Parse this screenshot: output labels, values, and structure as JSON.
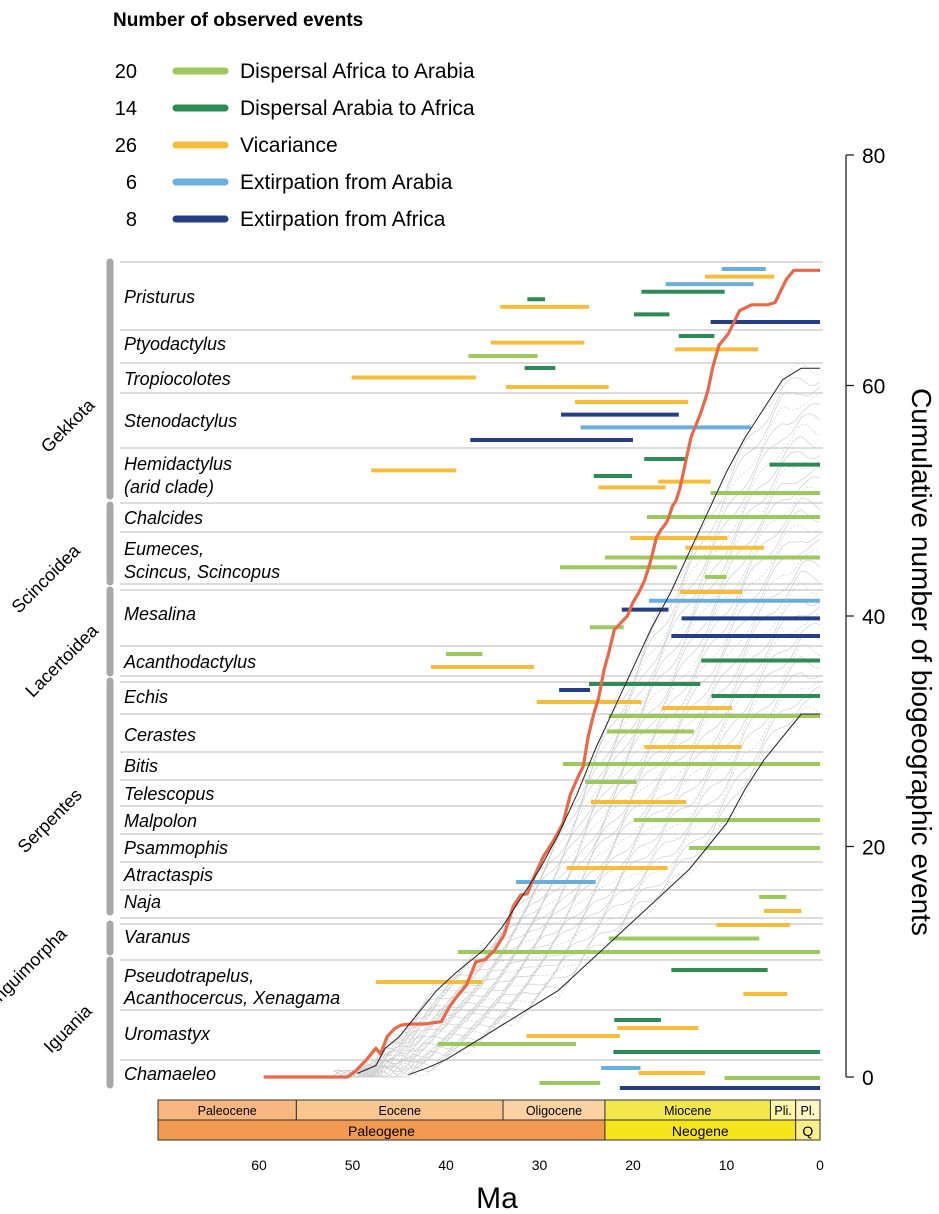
{
  "chart_data": {
    "type": "line",
    "legend": {
      "title": "Number of observed events",
      "placement": "top-left",
      "entries": [
        {
          "count": "20",
          "label": "Dispersal Africa to Arabia",
          "color": "#9cc85e"
        },
        {
          "count": "14",
          "label": "Dispersal Arabia to Africa",
          "color": "#2e8b57"
        },
        {
          "count": "26",
          "label": "Vicariance",
          "color": "#f6bd3c"
        },
        {
          "count": "6",
          "label": "Extirpation from Arabia",
          "color": "#6aaede"
        },
        {
          "count": "8",
          "label": "Extirpation from Africa",
          "color": "#243f86"
        }
      ]
    },
    "xlabel": "Ma",
    "xlim": [
      71,
      0
    ],
    "x_ticks": [
      "60",
      "50",
      "40",
      "30",
      "20",
      "10",
      "0"
    ],
    "x_tick_values": [
      60,
      50,
      40,
      30,
      20,
      10,
      0
    ],
    "ylabel": "Cumulative number of biogeographic events",
    "ylim": [
      0,
      80
    ],
    "y_ticks": [
      "0",
      "20",
      "40",
      "60",
      "80"
    ],
    "y_tick_values": [
      0,
      20,
      40,
      60,
      80
    ],
    "timescale": {
      "epochs": [
        {
          "label": "Paleocene",
          "from": 66,
          "to": 56,
          "color": "#f8b680"
        },
        {
          "label": "Eocene",
          "from": 56,
          "to": 33.9,
          "color": "#f9c590"
        },
        {
          "label": "Oligocene",
          "from": 33.9,
          "to": 23,
          "color": "#fcd2a4"
        },
        {
          "label": "Miocene",
          "from": 23,
          "to": 5.3,
          "color": "#f2e84e"
        },
        {
          "label": "Pli.",
          "from": 5.3,
          "to": 2.6,
          "color": "#fdf6a8"
        },
        {
          "label": "Pl.",
          "from": 2.6,
          "to": 0,
          "color": "#fdf5c4"
        }
      ],
      "periods": [
        {
          "label": "Paleogene",
          "from": 66,
          "to": 23,
          "color": "#f29a50"
        },
        {
          "label": "Neogene",
          "from": 23,
          "to": 2.6,
          "color": "#f6e41c"
        },
        {
          "label": "Q",
          "from": 2.6,
          "to": 0,
          "color": "#fbef8a"
        }
      ]
    },
    "groups": [
      {
        "label": "Gekkota",
        "from_row": 0,
        "to_row": 4
      },
      {
        "label": "Scincoidea",
        "from_row": 5,
        "to_row": 6
      },
      {
        "label": "Lacertoidea",
        "from_row": 7,
        "to_row": 8
      },
      {
        "label": "Serpentes",
        "from_row": 9,
        "to_row": 17
      },
      {
        "label": "Anguimorpha",
        "from_row": 18,
        "to_row": 18
      },
      {
        "label": "Iguania",
        "from_row": 19,
        "to_row": 21
      }
    ],
    "taxa": [
      {
        "lines": [
          "Pristurus"
        ],
        "events": [
          {
            "type": 3,
            "start": 10.5,
            "end": 5.8
          },
          {
            "type": 2,
            "start": 12.3,
            "end": 4.9
          },
          {
            "type": 3,
            "start": 16.5,
            "end": 7.1
          },
          {
            "type": 1,
            "start": 19.1,
            "end": 10.2
          },
          {
            "type": 1,
            "start": 31.3,
            "end": 29.4
          },
          {
            "type": 2,
            "start": 34.2,
            "end": 24.7
          },
          {
            "type": 1,
            "start": 19.9,
            "end": 16.1
          },
          {
            "type": 4,
            "start": 11.7,
            "end": 0
          }
        ]
      },
      {
        "lines": [
          "Ptyodactylus"
        ],
        "events": [
          {
            "type": 1,
            "start": 15.1,
            "end": 11.3
          },
          {
            "type": 2,
            "start": 35.2,
            "end": 25.2
          },
          {
            "type": 2,
            "start": 15.5,
            "end": 6.6
          },
          {
            "type": 0,
            "start": 37.6,
            "end": 30.2
          }
        ]
      },
      {
        "lines": [
          "Tropiocolotes"
        ],
        "events": [
          {
            "type": 1,
            "start": 31.6,
            "end": 28.3
          },
          {
            "type": 2,
            "start": 50.1,
            "end": 36.8
          },
          {
            "type": 2,
            "start": 33.6,
            "end": 22.6
          }
        ]
      },
      {
        "lines": [
          "Stenodactylus"
        ],
        "events": [
          {
            "type": 2,
            "start": 26.2,
            "end": 14.1
          },
          {
            "type": 4,
            "start": 27.7,
            "end": 15.1
          },
          {
            "type": 3,
            "start": 25.6,
            "end": 7.4
          },
          {
            "type": 4,
            "start": 37.4,
            "end": 20.0
          }
        ]
      },
      {
        "lines": [
          "Hemidactylus",
          "(arid clade)"
        ],
        "events": [
          {
            "type": 1,
            "start": 18.8,
            "end": 14.3
          },
          {
            "type": 1,
            "start": 5.4,
            "end": 0
          },
          {
            "type": 2,
            "start": 48.0,
            "end": 38.9
          },
          {
            "type": 1,
            "start": 24.2,
            "end": 20.1
          },
          {
            "type": 2,
            "start": 17.3,
            "end": 11.7
          },
          {
            "type": 2,
            "start": 23.7,
            "end": 16.5
          },
          {
            "type": 0,
            "start": 11.7,
            "end": 0
          }
        ]
      },
      {
        "lines": [
          "Chalcides"
        ],
        "events": [
          {
            "type": 0,
            "start": 18.5,
            "end": 0
          }
        ]
      },
      {
        "lines": [
          "Eumeces,",
          "Scincus, Scincopus"
        ],
        "events": [
          {
            "type": 2,
            "start": 20.3,
            "end": 9.9
          },
          {
            "type": 2,
            "start": 14.4,
            "end": 6.0
          },
          {
            "type": 0,
            "start": 23.0,
            "end": 0
          },
          {
            "type": 0,
            "start": 27.8,
            "end": 15.3
          },
          {
            "type": 0,
            "start": 12.3,
            "end": 10.0
          }
        ]
      },
      {
        "lines": [
          "Mesalina"
        ],
        "events": [
          {
            "type": 2,
            "start": 15.0,
            "end": 8.3
          },
          {
            "type": 3,
            "start": 18.3,
            "end": 0
          },
          {
            "type": 4,
            "start": 21.2,
            "end": 16.2
          },
          {
            "type": 4,
            "start": 14.8,
            "end": 0
          },
          {
            "type": 0,
            "start": 24.6,
            "end": 21.0
          },
          {
            "type": 4,
            "start": 15.9,
            "end": 0
          }
        ]
      },
      {
        "lines": [
          "Acanthodactylus"
        ],
        "events": [
          {
            "type": 0,
            "start": 40.0,
            "end": 36.1
          },
          {
            "type": 1,
            "start": 12.7,
            "end": 0
          },
          {
            "type": 2,
            "start": 41.6,
            "end": 30.6
          }
        ]
      },
      {
        "lines": [
          "Echis"
        ],
        "events": [
          {
            "type": 1,
            "start": 24.7,
            "end": 12.8
          },
          {
            "type": 4,
            "start": 27.9,
            "end": 24.6
          },
          {
            "type": 1,
            "start": 11.6,
            "end": 0
          },
          {
            "type": 2,
            "start": 30.3,
            "end": 19.1
          },
          {
            "type": 2,
            "start": 16.9,
            "end": 9.4
          }
        ]
      },
      {
        "lines": [
          "Cerastes"
        ],
        "events": [
          {
            "type": 0,
            "start": 22.6,
            "end": 0
          },
          {
            "type": 0,
            "start": 22.8,
            "end": 13.5
          },
          {
            "type": 2,
            "start": 18.8,
            "end": 8.4
          }
        ]
      },
      {
        "lines": [
          "Bitis"
        ],
        "events": [
          {
            "type": 0,
            "start": 27.5,
            "end": 0
          }
        ]
      },
      {
        "lines": [
          "Telescopus"
        ],
        "events": [
          {
            "type": 0,
            "start": 25.1,
            "end": 19.6
          },
          {
            "type": 2,
            "start": 24.5,
            "end": 14.3
          }
        ]
      },
      {
        "lines": [
          "Malpolon"
        ],
        "events": [
          {
            "type": 0,
            "start": 19.9,
            "end": 0
          }
        ]
      },
      {
        "lines": [
          "Psammophis"
        ],
        "events": [
          {
            "type": 0,
            "start": 14.0,
            "end": 0
          }
        ]
      },
      {
        "lines": [
          "Atractaspis"
        ],
        "events": [
          {
            "type": 2,
            "start": 27.1,
            "end": 16.3
          },
          {
            "type": 3,
            "start": 32.5,
            "end": 24.0
          }
        ]
      },
      {
        "lines": [
          "Naja"
        ],
        "events": [
          {
            "type": 0,
            "start": 6.5,
            "end": 3.6
          },
          {
            "type": 2,
            "start": 6.0,
            "end": 2.0
          }
        ]
      },
      {
        "lines": [
          "Varanus"
        ],
        "events": [
          {
            "type": 2,
            "start": 11.1,
            "end": 3.2
          },
          {
            "type": 0,
            "start": 22.6,
            "end": 6.5
          },
          {
            "type": 0,
            "start": 38.7,
            "end": 0
          }
        ]
      },
      {
        "lines": [
          "Pseudotrapelus,",
          "Acanthocercus, Xenagama"
        ],
        "events": [
          {
            "type": 1,
            "start": 15.9,
            "end": 5.6
          },
          {
            "type": 2,
            "start": 47.5,
            "end": 36.1
          },
          {
            "type": 2,
            "start": 8.2,
            "end": 3.5
          }
        ]
      },
      {
        "lines": [
          "Uromastyx"
        ],
        "events": [
          {
            "type": 1,
            "start": 22.0,
            "end": 17.0
          },
          {
            "type": 2,
            "start": 21.7,
            "end": 13.0
          },
          {
            "type": 2,
            "start": 31.4,
            "end": 21.4
          },
          {
            "type": 0,
            "start": 40.9,
            "end": 26.1
          },
          {
            "type": 1,
            "start": 22.1,
            "end": 0
          }
        ]
      },
      {
        "lines": [
          "Chamaeleo"
        ],
        "events": [
          {
            "type": 3,
            "start": 23.4,
            "end": 19.2
          },
          {
            "type": 2,
            "start": 19.4,
            "end": 12.3
          },
          {
            "type": 0,
            "start": 10.2,
            "end": 0
          },
          {
            "type": 0,
            "start": 30.0,
            "end": 23.5
          },
          {
            "type": 4,
            "start": 21.4,
            "end": 0
          }
        ]
      }
    ],
    "series": [
      {
        "style": "observed",
        "color": "#e8694a",
        "x": [
          59.5,
          50.5,
          49.7,
          48.5,
          47.5,
          47.0,
          46.3,
          45.5,
          44.8,
          43.8,
          42.3,
          40.5,
          39.7,
          39.0,
          37.8,
          36.8,
          35.8,
          34.8,
          33.8,
          32.8,
          32.0,
          31.3,
          30.5,
          29.6,
          28.5,
          27.5,
          26.7,
          25.9,
          25.3,
          24.8,
          24.2,
          23.7,
          23.1,
          22.6,
          22.0,
          21.2,
          20.6,
          20.0,
          19.4,
          18.8,
          18.2,
          17.8,
          17.5,
          17.0,
          16.5,
          16.2,
          15.8,
          15.4,
          15.0,
          14.6,
          14.2,
          13.8,
          13.3,
          12.8,
          12.4,
          12.0,
          11.5,
          10.8,
          9.8,
          8.6,
          7.3,
          5.6,
          4.8,
          3.6,
          2.8,
          0
        ],
        "y": [
          0,
          0,
          0.5,
          1.5,
          2.5,
          2.0,
          3.5,
          4.2,
          4.5,
          4.6,
          4.6,
          4.8,
          6.0,
          6.8,
          8.0,
          10.0,
          10.2,
          11.0,
          12.3,
          14.8,
          15.8,
          15.9,
          17.5,
          19.1,
          20.5,
          22.0,
          24.5,
          26.0,
          27.0,
          29.5,
          31.5,
          32.8,
          35.3,
          36.8,
          38.8,
          39.5,
          40.0,
          41.2,
          42.0,
          43.0,
          44.5,
          45.8,
          46.8,
          47.5,
          48.0,
          48.5,
          49.5,
          50.0,
          51.0,
          52.5,
          54.0,
          55.5,
          56.5,
          57.5,
          58.5,
          59.5,
          61.5,
          63.5,
          64.5,
          66.5,
          67.0,
          67.0,
          67.2,
          69.2,
          70.0,
          70.0
        ]
      },
      {
        "style": "envelope",
        "color": "#222222",
        "x": [
          49.5,
          47.5,
          46.5,
          45.0,
          43.0,
          41.0,
          39.0,
          36.0,
          34.0,
          32.0,
          30.0,
          28.0,
          26.0,
          24.0,
          22.0,
          20.0,
          18.0,
          16.0,
          14.0,
          12.0,
          10.0,
          8.0,
          6.0,
          4.0,
          2.0,
          0
        ],
        "y": [
          0.3,
          1.0,
          2.5,
          3.5,
          5.5,
          7.5,
          9.0,
          11.0,
          13.0,
          15.5,
          18.0,
          21.0,
          24.5,
          28.5,
          32.0,
          35.5,
          39.0,
          42.0,
          45.5,
          49.0,
          52.5,
          55.5,
          58.0,
          60.5,
          61.5,
          61.5
        ]
      },
      {
        "style": "envelope",
        "color": "#222222",
        "x": [
          44.0,
          42.0,
          40.0,
          38.0,
          36.0,
          34.0,
          32.0,
          30.0,
          28.0,
          26.0,
          24.0,
          22.0,
          20.0,
          18.0,
          16.0,
          14.0,
          12.0,
          10.0,
          8.0,
          6.0,
          4.0,
          2.0,
          0
        ],
        "y": [
          0.2,
          0.8,
          1.5,
          2.5,
          3.5,
          4.5,
          5.5,
          6.5,
          7.5,
          9.0,
          10.5,
          12.0,
          13.5,
          15.0,
          16.5,
          18.0,
          20.0,
          22.0,
          25.0,
          27.5,
          29.5,
          31.5,
          31.5
        ]
      }
    ]
  }
}
